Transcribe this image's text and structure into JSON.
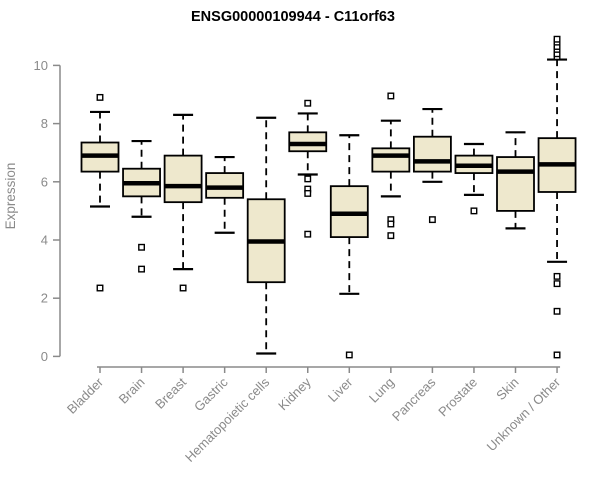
{
  "chart_data": {
    "type": "boxplot",
    "title": "ENSG00000109944 - C11orf63",
    "xlabel": "",
    "ylabel": "Expression",
    "ylim": [
      0,
      11.2
    ],
    "yticks": [
      0,
      2,
      4,
      6,
      8,
      10
    ],
    "grid": false,
    "legend": "none",
    "categories": [
      "Bladder",
      "Brain",
      "Breast",
      "Gastric",
      "Hematopoietic cells",
      "Kidney",
      "Liver",
      "Lung",
      "Pancreas",
      "Prostate",
      "Skin",
      "Unknown / Other"
    ],
    "boxes": [
      {
        "category": "Bladder",
        "whisker_low": 5.15,
        "q1": 6.35,
        "median": 6.9,
        "q3": 7.35,
        "whisker_high": 8.4,
        "outliers": [
          8.9,
          2.35
        ]
      },
      {
        "category": "Brain",
        "whisker_low": 4.8,
        "q1": 5.5,
        "median": 5.95,
        "q3": 6.45,
        "whisker_high": 7.4,
        "outliers": [
          3.75,
          3.0
        ]
      },
      {
        "category": "Breast",
        "whisker_low": 3.0,
        "q1": 5.3,
        "median": 5.85,
        "q3": 6.9,
        "whisker_high": 8.3,
        "outliers": [
          2.35
        ]
      },
      {
        "category": "Gastric",
        "whisker_low": 4.25,
        "q1": 5.45,
        "median": 5.8,
        "q3": 6.3,
        "whisker_high": 6.85,
        "outliers": []
      },
      {
        "category": "Hematopoietic cells",
        "whisker_low": 0.1,
        "q1": 2.55,
        "median": 3.95,
        "q3": 5.4,
        "whisker_high": 8.2,
        "outliers": []
      },
      {
        "category": "Kidney",
        "whisker_low": 6.25,
        "q1": 7.05,
        "median": 7.3,
        "q3": 7.7,
        "whisker_high": 8.35,
        "outliers": [
          8.7,
          6.1,
          5.75,
          5.6,
          4.2
        ]
      },
      {
        "category": "Liver",
        "whisker_low": 2.15,
        "q1": 4.1,
        "median": 4.9,
        "q3": 5.85,
        "whisker_high": 7.6,
        "outliers": [
          0.05
        ]
      },
      {
        "category": "Lung",
        "whisker_low": 5.5,
        "q1": 6.35,
        "median": 6.9,
        "q3": 7.15,
        "whisker_high": 8.1,
        "outliers": [
          8.95,
          4.7,
          4.55,
          4.15
        ]
      },
      {
        "category": "Pancreas",
        "whisker_low": 6.0,
        "q1": 6.35,
        "median": 6.7,
        "q3": 7.55,
        "whisker_high": 8.5,
        "outliers": [
          4.7
        ]
      },
      {
        "category": "Prostate",
        "whisker_low": 5.55,
        "q1": 6.3,
        "median": 6.55,
        "q3": 6.9,
        "whisker_high": 7.3,
        "outliers": [
          5.0
        ]
      },
      {
        "category": "Skin",
        "whisker_low": 4.4,
        "q1": 5.0,
        "median": 6.35,
        "q3": 6.85,
        "whisker_high": 7.7,
        "outliers": []
      },
      {
        "category": "Unknown / Other",
        "whisker_low": 3.25,
        "q1": 5.65,
        "median": 6.6,
        "q3": 7.5,
        "whisker_high": 10.2,
        "outliers": [
          10.3,
          10.4,
          10.55,
          10.65,
          10.8,
          10.9,
          2.75,
          2.5,
          1.55,
          0.05
        ]
      }
    ],
    "colors": {
      "box_fill": "#EEE8CD",
      "box_stroke": "#000000",
      "median": "#000000",
      "whisker": "#000000",
      "outlier_stroke": "#000000",
      "outlier_fill": "#ffffff",
      "axis": "#8a8a8a",
      "tick_text": "#8a8a8a",
      "title_text": "#000000",
      "background": "#ffffff"
    }
  }
}
